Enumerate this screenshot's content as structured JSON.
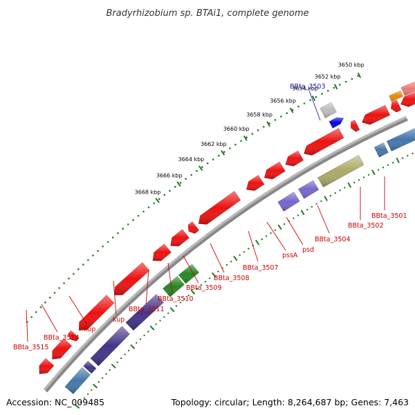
{
  "title": "Bradyrhizobium sp. BTAi1, complete genome",
  "footer": {
    "accession": "Accession: NC_009485",
    "summary": "Topology: circular; Length: 8,264,687 bp; Genes: 7,463"
  },
  "colors": {
    "forward_gene": "#ee1111",
    "reverse_gene_red": "#ee1111",
    "steelblue": "#4477aa",
    "darkpurple": "#443388",
    "violet": "#7766cc",
    "green": "#228822",
    "olive": "#aaaa66",
    "gray": "#bbbbbb",
    "blue": "#0000ee",
    "orange": "#ee8800",
    "salmon": "#ee7777",
    "backbone": "#888888",
    "tick": "#227722",
    "label_red": "#cc0000",
    "label_blue": "#1a1aaa"
  },
  "scale_labels": [
    "3650 kbp",
    "3652 kbp",
    "3654 kbp",
    "3656 kbp",
    "3658 kbp",
    "3660 kbp",
    "3662 kbp",
    "3664 kbp",
    "3666 kbp",
    "3668 kbp"
  ],
  "gene_labels": [
    "BBta_3503",
    "BBta_3501",
    "BBta_3502",
    "BBta_3504",
    "psd",
    "pssA",
    "BBta_3507",
    "BBta_3508",
    "BBta_3509",
    "BBta_3510",
    "BBta_3511",
    "kup",
    "kup",
    "BBta_3514",
    "BBta_3515"
  ]
}
